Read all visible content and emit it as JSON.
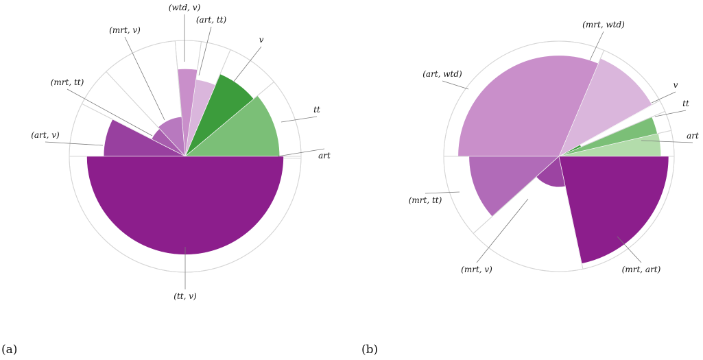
{
  "chart_data": [
    {
      "type": "pie",
      "panel_label": "(a)",
      "value_range": [
        0,
        1
      ],
      "slices": [
        {
          "label": "art",
          "value": 0.02,
          "color": "#c0e5b8"
        },
        {
          "label": "tt",
          "value": 0.95,
          "color": "#7bbf77"
        },
        {
          "label": "v",
          "value": 0.9,
          "color": "#3c9c3c"
        },
        {
          "label": "(art, tt)",
          "value": 0.78,
          "color": "#dab6dc"
        },
        {
          "label": "(wtd, v)",
          "value": 0.88,
          "color": "#c98fca"
        },
        {
          "label": "(mrt, v)",
          "value": 0.4,
          "color": "#b879bf"
        },
        {
          "label": "(mrt, tt)",
          "value": 0.38,
          "color": "#a85dae"
        },
        {
          "label": "(art, v)",
          "value": 0.82,
          "color": "#98409f"
        },
        {
          "label": "(tt, v)",
          "value": 0.99,
          "color": "#8c1e8c"
        }
      ]
    },
    {
      "type": "pie",
      "panel_label": "(b)",
      "value_range": [
        0,
        1
      ],
      "slices": [
        {
          "label": "art",
          "value": 0.93,
          "color": "#b3dcab"
        },
        {
          "label": "tt",
          "value": 0.92,
          "color": "#7bbf77"
        },
        {
          "label": "v",
          "value": 0.22,
          "color": "#3c9c3c"
        },
        {
          "label": "(mrt, wtd)",
          "value": 0.97,
          "color": "#dab6dc"
        },
        {
          "label": "(art, wtd)",
          "value": 0.92,
          "color": "#c98fca"
        },
        {
          "label": "(mrt, tt)",
          "value": 0.82,
          "color": "#b16bb8"
        },
        {
          "label": "(mrt, v)",
          "value": 0.28,
          "color": "#9c44a2"
        },
        {
          "label": "(mrt, art)",
          "value": 1.0,
          "color": "#8c1e8c"
        }
      ]
    }
  ]
}
